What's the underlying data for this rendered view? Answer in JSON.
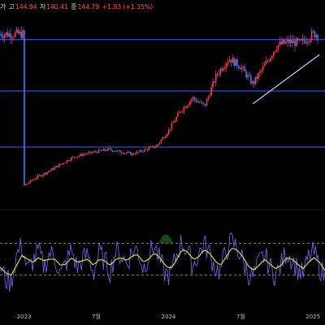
{
  "legend": {
    "open_tail_label": "가",
    "high_label": "고",
    "high_value": "144.94",
    "low_label": "저",
    "low_value": "140.41",
    "close_label": "종",
    "close_value": "144.79",
    "change": "+1.93 (+1.35%)",
    "colors": {
      "label": "#d8d8d8",
      "value": "#ff4a4a"
    }
  },
  "chart_data": [
    {
      "type": "candlestick",
      "title": "",
      "x_ticks": [
        "2023",
        "7월",
        "2024",
        "7월",
        "2025"
      ],
      "price_range": [
        0,
        160
      ],
      "candles_approx": [
        {
          "x": "2023-01",
          "close": 15
        },
        {
          "x": "2023-02",
          "close": 22
        },
        {
          "x": "2023-03",
          "close": 27
        },
        {
          "x": "2023-05",
          "close": 39
        },
        {
          "x": "2023-06",
          "close": 42
        },
        {
          "x": "2023-08",
          "close": 46
        },
        {
          "x": "2023-10",
          "close": 42
        },
        {
          "x": "2023-12",
          "close": 49
        },
        {
          "x": "2024-01",
          "close": 62
        },
        {
          "x": "2024-02",
          "close": 79
        },
        {
          "x": "2024-03",
          "close": 90
        },
        {
          "x": "2024-04",
          "close": 83
        },
        {
          "x": "2024-05",
          "close": 110
        },
        {
          "x": "2024-06",
          "close": 124
        },
        {
          "x": "2024-07",
          "close": 117
        },
        {
          "x": "2024-08",
          "close": 102
        },
        {
          "x": "2024-09",
          "close": 118
        },
        {
          "x": "2024-10",
          "close": 135
        },
        {
          "x": "2024-11",
          "close": 138
        },
        {
          "x": "2024-12",
          "close": 137
        },
        {
          "x": "2025-01",
          "close": 144.79
        }
      ],
      "horizontal_lines": [
        140,
        96,
        48
      ],
      "trendline": {
        "from": {
          "x": "2024-08",
          "price": 85
        },
        "to": {
          "x": "2025-01",
          "price": 123
        }
      },
      "colors": {
        "up": "#ff3b3b",
        "down": "#3a7bff",
        "hline": "#4b5cff",
        "trendline": "#c8d4ff"
      }
    },
    {
      "type": "line",
      "title": "",
      "oscillator_range": [
        0,
        100
      ],
      "levels": [
        70,
        30
      ],
      "series": [
        {
          "color": "#7b68ee",
          "values": [
            42,
            25,
            20,
            55,
            68,
            35,
            48,
            60,
            40,
            58,
            52,
            30,
            45,
            62,
            38,
            50,
            55,
            33,
            58,
            48,
            35,
            60,
            55,
            45,
            60,
            62,
            38,
            55,
            68,
            48,
            32,
            30,
            55,
            72,
            60,
            42,
            55,
            70,
            58,
            40,
            35,
            60,
            72,
            65,
            50,
            32,
            28,
            45,
            55,
            40,
            30,
            42,
            60,
            50,
            38,
            30,
            52,
            58,
            40,
            28
          ]
        },
        {
          "color": "#e6e64a",
          "values": [
            40,
            33,
            30,
            42,
            55,
            50,
            46,
            52,
            48,
            50,
            50,
            42,
            44,
            52,
            46,
            48,
            50,
            42,
            50,
            48,
            42,
            50,
            52,
            48,
            54,
            56,
            46,
            50,
            58,
            52,
            42,
            38,
            48,
            62,
            60,
            50,
            52,
            62,
            58,
            48,
            42,
            52,
            64,
            62,
            54,
            42,
            36,
            42,
            50,
            44,
            38,
            42,
            52,
            50,
            44,
            38,
            46,
            52,
            46,
            36
          ]
        }
      ],
      "colors": {
        "level": "#9a9a9a",
        "overbought_fill": "#2e7d32"
      }
    }
  ]
}
